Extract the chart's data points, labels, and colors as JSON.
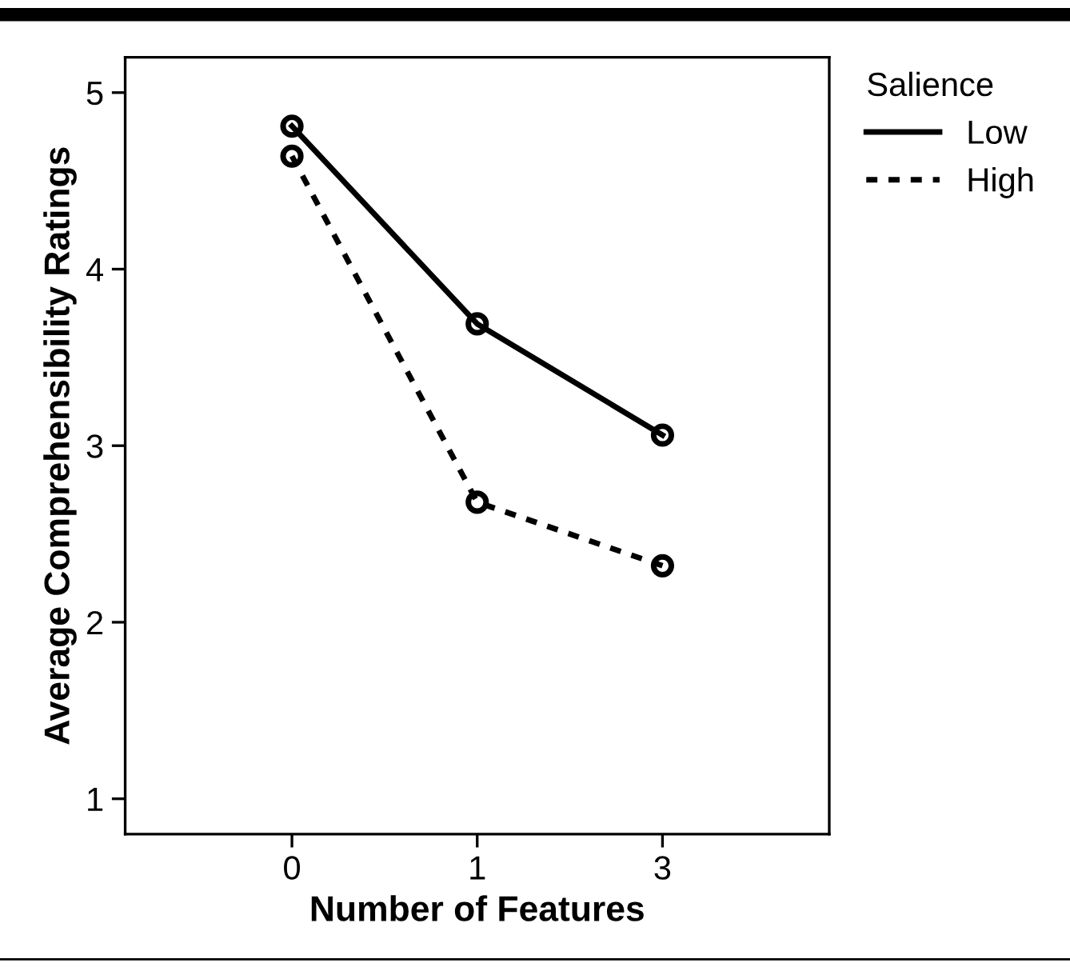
{
  "chart_data": {
    "type": "line",
    "xlabel": "Number of Features",
    "ylabel": "Average Comprehensibility Ratings",
    "legend_title": "Salience",
    "categories": [
      "0",
      "1",
      "3"
    ],
    "series": [
      {
        "name": "Low",
        "color": "#000000",
        "values": [
          4.81,
          3.69,
          3.06
        ],
        "line_style": "solid"
      },
      {
        "name": "High",
        "color": "#000000",
        "values": [
          4.64,
          2.68,
          2.32
        ],
        "line_style": "dotted"
      }
    ],
    "ylim": [
      0.8,
      5.2
    ],
    "yticks": [
      1,
      2,
      3,
      4,
      5
    ],
    "marker": "circle",
    "grid": false,
    "legend": "right"
  }
}
